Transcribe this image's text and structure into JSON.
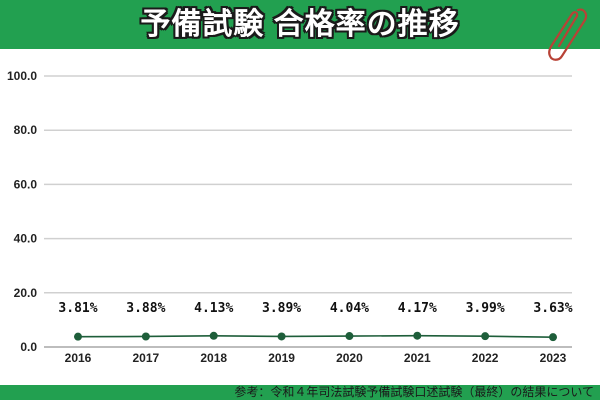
{
  "header": {
    "title": "予備試験 合格率の推移",
    "background_color": "#22a050",
    "icon": "paperclip-icon"
  },
  "footer": {
    "source_text": "参考：令和４年司法試験予備試験口述試験（最終）の結果について"
  },
  "chart_data": {
    "type": "line",
    "title": "予備試験 合格率の推移",
    "xlabel": "",
    "ylabel": "",
    "categories": [
      "2016",
      "2017",
      "2018",
      "2019",
      "2020",
      "2021",
      "2022",
      "2023"
    ],
    "values": [
      3.81,
      3.88,
      4.13,
      3.89,
      4.04,
      4.17,
      3.99,
      3.63
    ],
    "data_labels": [
      "3.81%",
      "3.88%",
      "4.13%",
      "3.89%",
      "4.04%",
      "4.17%",
      "3.99%",
      "3.63%"
    ],
    "series": [
      {
        "name": "合格率",
        "values": [
          3.81,
          3.88,
          4.13,
          3.89,
          4.04,
          4.17,
          3.99,
          3.63
        ],
        "color": "#1e5e3a"
      }
    ],
    "ylim": [
      0,
      100
    ],
    "yticks": [
      "0.0",
      "20.0",
      "40.0",
      "60.0",
      "80.0",
      "100.0"
    ],
    "grid": true,
    "legend": "none"
  }
}
